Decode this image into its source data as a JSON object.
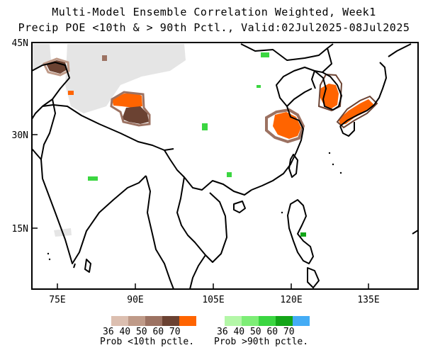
{
  "title": {
    "line1": "Multi-Model Ensemble Correlation Weighted, Week1",
    "line2": "Precip POE <10th & > 90th Pctl., Valid:02Jul2025-08Jul2025"
  },
  "map": {
    "lat_ticks": [
      "45N",
      "30N",
      "15N"
    ],
    "lon_ticks": [
      "75E",
      "90E",
      "105E",
      "120E",
      "135E"
    ],
    "extent": {
      "lon": [
        70,
        145
      ],
      "lat": [
        5,
        45
      ]
    },
    "colors": {
      "below": [
        "#dcbfb0",
        "#bf9a88",
        "#9c7262",
        "#6b4232",
        "#ff6400"
      ],
      "above": [
        "#b4f7a8",
        "#7ded76",
        "#3bd641",
        "#13a518",
        "#44acf5"
      ],
      "nodata": "#e5e5e5"
    }
  },
  "legend": {
    "below": {
      "values": "36 40 50 60 70",
      "title": "Prob <10th pctle."
    },
    "above": {
      "values": "36 40 50 60 70",
      "title": "Prob >90th pctle."
    }
  }
}
